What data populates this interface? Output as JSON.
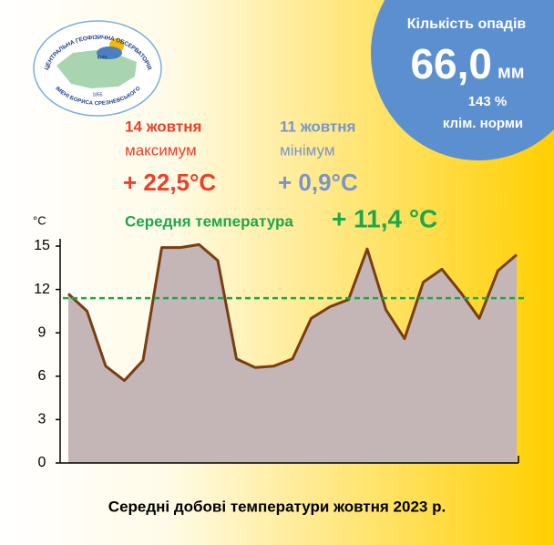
{
  "logo": {
    "top": "ЦЕНТРАЛЬНА ГЕОФІЗИЧНА ОБСЕРВАТОРІЯ",
    "bottom": "ІМЕНІ БОРИСА СРЕЗНЕВСЬКОГО",
    "year": "1855",
    "city": "Київ"
  },
  "precipitation": {
    "label": "Кількість опадів",
    "amount": "66,0",
    "unit": "мм",
    "percent": "143 %",
    "norm": "клім. норми"
  },
  "maximum": {
    "date": "14 жовтня",
    "label": "максимум",
    "value": "+ 22,5°C"
  },
  "minimum": {
    "date": "11 жовтня",
    "label": "мінімум",
    "value": "+ 0,9°C"
  },
  "average": {
    "label": "Середня температура",
    "value": "+ 11,4 °C"
  },
  "chart_data": {
    "type": "area",
    "title": "Середні добові температури жовтня 2023 р.",
    "y_label": "°C",
    "values": [
      11.7,
      10.5,
      6.7,
      5.7,
      7.1,
      14.9,
      14.9,
      15.1,
      14.0,
      7.2,
      6.6,
      6.7,
      7.2,
      10.0,
      10.8,
      11.3,
      14.8,
      10.6,
      8.6,
      12.5,
      13.4,
      11.8,
      10.0,
      13.3,
      14.4
    ],
    "color": "#c4b6b7",
    "line_color": "#7a3e10",
    "average_line": 11.4,
    "average_color": "#1aa84a",
    "ylim": [
      0,
      15
    ],
    "yticks": [
      0,
      3,
      6,
      9,
      12,
      15
    ]
  }
}
